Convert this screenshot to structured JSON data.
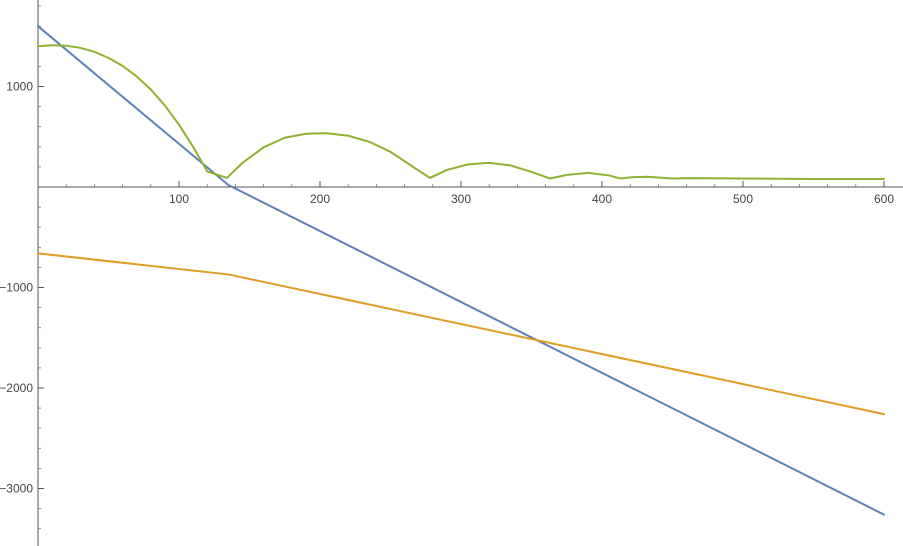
{
  "chart_data": {
    "type": "line",
    "title": "",
    "xlabel": "",
    "ylabel": "",
    "xlim": [
      0,
      610
    ],
    "ylim": [
      -3550,
      1850
    ],
    "grid": false,
    "x_ticks": [
      100,
      200,
      300,
      400,
      500,
      600
    ],
    "x_tick_labels": [
      "100",
      "200",
      "300",
      "400",
      "500",
      "600"
    ],
    "y_ticks": [
      1000,
      -1000,
      -2000,
      -3000
    ],
    "y_tick_labels": [
      "1000",
      "−1000",
      "−2000",
      "−3000"
    ],
    "series": [
      {
        "color": "#5e81b5",
        "x": [
          0,
          135,
          600
        ],
        "y": [
          1600,
          20,
          -3260
        ]
      },
      {
        "color": "#e19c24",
        "x": [
          0,
          135,
          600
        ],
        "y": [
          -660,
          -870,
          -2260
        ]
      },
      {
        "color": "#8fb032",
        "x": [
          0,
          10,
          20,
          30,
          40,
          50,
          60,
          70,
          80,
          90,
          100,
          110,
          120,
          134,
          145,
          160,
          175,
          190,
          205,
          220,
          235,
          250,
          265,
          278,
          290,
          305,
          320,
          335,
          350,
          363,
          375,
          390,
          405,
          413,
          422,
          432,
          442,
          450,
          460,
          500,
          550,
          600
        ],
        "y": [
          1400,
          1410,
          1405,
          1385,
          1345,
          1285,
          1205,
          1100,
          970,
          810,
          620,
          400,
          155,
          90,
          240,
          395,
          490,
          530,
          535,
          510,
          450,
          350,
          210,
          90,
          170,
          225,
          240,
          215,
          150,
          85,
          120,
          140,
          115,
          85,
          98,
          102,
          92,
          85,
          88,
          85,
          80,
          80
        ]
      }
    ]
  }
}
